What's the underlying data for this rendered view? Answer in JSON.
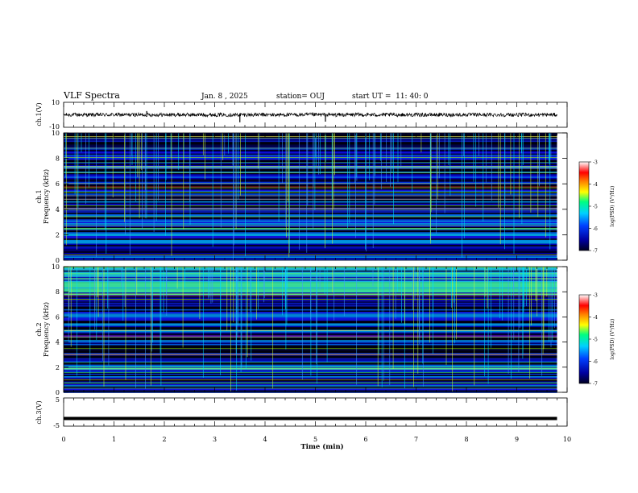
{
  "header": {
    "title": "VLF Spectra",
    "date": "Jan. 8 , 2025",
    "station": "station= OUJ",
    "start": "start UT =  11: 40: 0"
  },
  "colorbar": {
    "label": "log(PSD) (V²/Hz)",
    "ticks": [
      "-3",
      "-4",
      "-5",
      "-6",
      "-7"
    ],
    "range": [
      -7,
      -3
    ],
    "colors": [
      "#000000",
      "#00008b",
      "#0000ff",
      "#00c8ff",
      "#00ff80",
      "#ffff00",
      "#ff8000",
      "#ff0000",
      "#ffffff"
    ]
  },
  "chart_data": [
    {
      "type": "line",
      "panel": "ch1-waveform",
      "ylabel": "ch.1(V)",
      "yticks": [
        "10",
        "-10"
      ],
      "ylim": [
        -10,
        10
      ],
      "xlim": [
        0,
        10
      ],
      "x_end": 9.8,
      "baseline": 0,
      "amplitude_band": [
        -1.5,
        1.5
      ],
      "spikes": [
        {
          "x": 1.65,
          "y": 3
        },
        {
          "x": 3.5,
          "y": -6
        },
        {
          "x": 5.2,
          "y": -5.5
        }
      ]
    },
    {
      "type": "heatmap",
      "panel": "ch1-spectrogram",
      "ylabel": "ch.1 Frequency (kHz)",
      "yticks": [
        "0",
        "2",
        "4",
        "6",
        "8",
        "10"
      ],
      "ylim": [
        0,
        10
      ],
      "xlim": [
        0,
        10
      ],
      "x_end": 9.8,
      "units": "kHz"
    },
    {
      "type": "heatmap",
      "panel": "ch2-spectrogram",
      "ylabel": "ch.2 Frequency (kHz)",
      "yticks": [
        "0",
        "2",
        "4",
        "6",
        "8",
        "10"
      ],
      "ylim": [
        0,
        10
      ],
      "xlim": [
        0,
        10
      ],
      "x_end": 9.8,
      "units": "kHz"
    },
    {
      "type": "line",
      "panel": "ch3-waveform",
      "ylabel": "ch.3(V)",
      "yticks": [
        "5",
        "-5"
      ],
      "ylim": [
        -5,
        5
      ],
      "xlim": [
        0,
        10
      ],
      "x_end": 9.8,
      "level": -2.3,
      "xlabel": "Time (min)",
      "xticks": [
        "0",
        "1",
        "2",
        "3",
        "4",
        "5",
        "6",
        "7",
        "8",
        "9",
        "10"
      ]
    }
  ]
}
